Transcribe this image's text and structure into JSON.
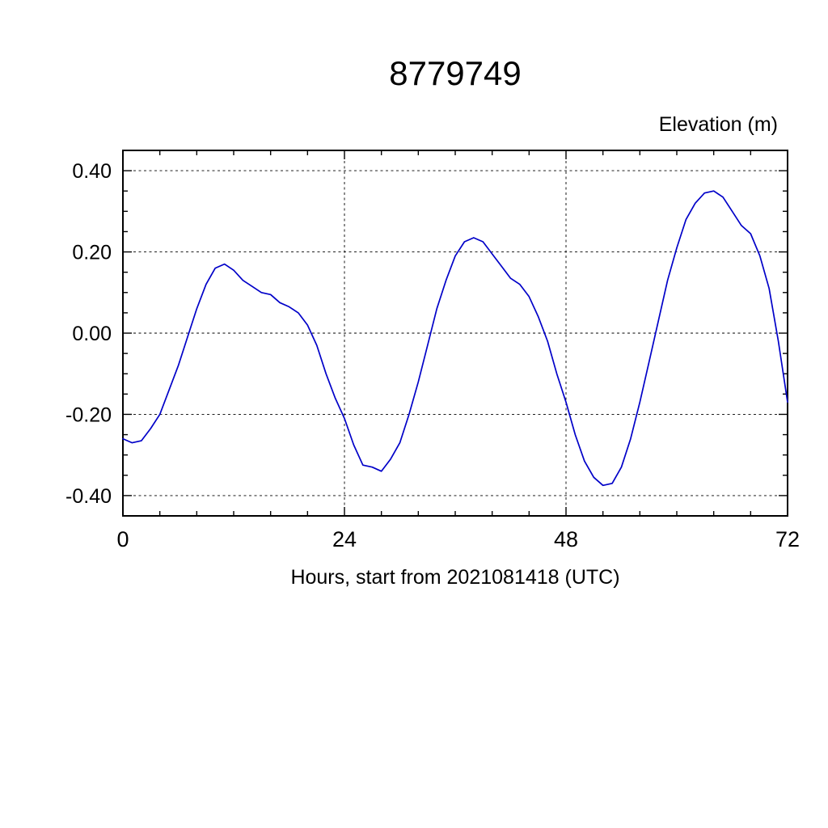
{
  "chart_data": {
    "type": "line",
    "title": "8779749",
    "ylabel": "Elevation (m)",
    "xlabel": "Hours, start from 2021081418 (UTC)",
    "xlim": [
      0,
      72
    ],
    "ylim": [
      -0.45,
      0.45
    ],
    "xticks_major": [
      0,
      24,
      48,
      72
    ],
    "xtick_labels": [
      "0",
      "24",
      "48",
      "72"
    ],
    "xtick_minor": 4,
    "yticks_major": [
      -0.4,
      -0.2,
      0,
      0.2,
      0.4
    ],
    "ytick_labels": [
      "-0.40",
      "-0.20",
      "0.00",
      "0.20",
      "0.40"
    ],
    "ytick_minor": 0.05,
    "grid_x": [
      24,
      48
    ],
    "grid_y": [
      -0.4,
      -0.2,
      0,
      0.2,
      0.4
    ],
    "grid_on": true,
    "legend": "none",
    "line_color": "#0000c8",
    "series": [
      {
        "name": "elevation",
        "x": [
          0,
          1,
          2,
          3,
          4,
          5,
          6,
          7,
          8,
          9,
          10,
          11,
          12,
          13,
          14,
          15,
          16,
          17,
          18,
          19,
          20,
          21,
          22,
          23,
          24,
          25,
          26,
          27,
          28,
          29,
          30,
          31,
          32,
          33,
          34,
          35,
          36,
          37,
          38,
          39,
          40,
          41,
          42,
          43,
          44,
          45,
          46,
          47,
          48,
          49,
          50,
          51,
          52,
          53,
          54,
          55,
          56,
          57,
          58,
          59,
          60,
          61,
          62,
          63,
          64,
          65,
          66,
          67,
          68,
          69,
          70,
          71,
          72
        ],
        "y": [
          -0.26,
          -0.27,
          -0.265,
          -0.235,
          -0.2,
          -0.14,
          -0.08,
          -0.01,
          0.06,
          0.12,
          0.16,
          0.17,
          0.155,
          0.13,
          0.115,
          0.1,
          0.095,
          0.075,
          0.065,
          0.05,
          0.02,
          -0.03,
          -0.1,
          -0.16,
          -0.21,
          -0.275,
          -0.325,
          -0.33,
          -0.34,
          -0.31,
          -0.27,
          -0.2,
          -0.12,
          -0.03,
          0.06,
          0.13,
          0.19,
          0.225,
          0.235,
          0.225,
          0.195,
          0.165,
          0.135,
          0.12,
          0.09,
          0.04,
          -0.02,
          -0.1,
          -0.17,
          -0.25,
          -0.315,
          -0.355,
          -0.375,
          -0.37,
          -0.33,
          -0.26,
          -0.17,
          -0.07,
          0.03,
          0.13,
          0.21,
          0.28,
          0.32,
          0.345,
          0.35,
          0.335,
          0.3,
          0.265,
          0.245,
          0.19,
          0.11,
          -0.02,
          -0.17
        ]
      }
    ]
  }
}
